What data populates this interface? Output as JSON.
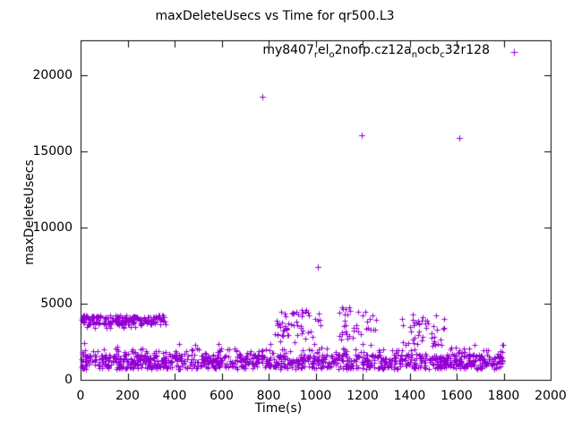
{
  "colors": {
    "background": "#ffffff",
    "foreground": "#000000",
    "series": "#9400D3"
  },
  "chart_data": {
    "type": "scatter",
    "title": "maxDeleteUsecs vs Time for qr500.L3",
    "xlabel": "Time(s)",
    "ylabel": "maxDeleteUsecs",
    "xlim": [
      0,
      2000
    ],
    "ylim": [
      0,
      22290
    ],
    "xticks": [
      0,
      200,
      400,
      600,
      800,
      1000,
      1200,
      1400,
      1600,
      1800,
      2000
    ],
    "yticks": [
      0,
      5000,
      10000,
      15000,
      20000
    ],
    "grid": false,
    "legend_position": "top-right-inside",
    "marker": "plus",
    "note": "dense scatter bands approximated by uniform random points within measured regions",
    "series": [
      {
        "name": "my8407_rel_o2nofp.cz12a_nocb_c32r128",
        "label_parts": [
          {
            "text": "my8407",
            "sub": false
          },
          {
            "text": "r",
            "sub": true
          },
          {
            "text": "el",
            "sub": false
          },
          {
            "text": "o",
            "sub": true
          },
          {
            "text": "2nofp.cz12a",
            "sub": false
          },
          {
            "text": "n",
            "sub": true
          },
          {
            "text": "ocb",
            "sub": false
          },
          {
            "text": "c",
            "sub": true
          },
          {
            "text": "32r128",
            "sub": false
          }
        ],
        "color": "#9400D3",
        "outlier_points": [
          [
            772,
            18600
          ],
          [
            1008,
            7400
          ],
          [
            1197,
            16050
          ],
          [
            1613,
            15900
          ]
        ],
        "dense_regions": [
          {
            "desc": "baseline band core 0-1800s",
            "t_range": [
              2,
              1798
            ],
            "y_range": [
              720,
              1660
            ],
            "count": 1000,
            "seed": 11
          },
          {
            "desc": "baseline band upper fuzz",
            "t_range": [
              3,
              1797
            ],
            "y_range": [
              1660,
              2080
            ],
            "count": 110,
            "seed": 22
          },
          {
            "desc": "baseline sparse tips",
            "t_range": [
              15,
              1790
            ],
            "y_range": [
              2080,
              2420
            ],
            "count": 10,
            "seed": 33
          },
          {
            "desc": "left plateau ~4000us 0-360s",
            "t_range": [
              0,
              362
            ],
            "y_range": [
              3620,
              4230
            ],
            "count": 210,
            "seed": 44
          },
          {
            "desc": "left plateau low fuzz",
            "t_range": [
              4,
              358
            ],
            "y_range": [
              3400,
              3620
            ],
            "count": 10,
            "seed": 55
          },
          {
            "desc": "cluster near 900s",
            "t_range": [
              828,
              1025
            ],
            "y_range": [
              2950,
              4620
            ],
            "count": 52,
            "seed": 66
          },
          {
            "desc": "cluster near 900s low tail",
            "t_range": [
              842,
              1005
            ],
            "y_range": [
              2430,
              2950
            ],
            "count": 5,
            "seed": 77
          },
          {
            "desc": "cluster near 1150s",
            "t_range": [
              1098,
              1258
            ],
            "y_range": [
              2300,
              4800
            ],
            "count": 40,
            "seed": 88
          },
          {
            "desc": "cluster near 1450s",
            "t_range": [
              1368,
              1548
            ],
            "y_range": [
              2220,
              4380
            ],
            "count": 46,
            "seed": 99
          },
          {
            "desc": "sparse points 1550-1800s",
            "t_range": [
              1552,
              1798
            ],
            "y_range": [
              1800,
              2420
            ],
            "count": 9,
            "seed": 111
          },
          {
            "desc": "left edge spikes",
            "t_range": [
              3,
              20
            ],
            "y_range": [
              2250,
              2600
            ],
            "count": 3,
            "seed": 122
          }
        ]
      }
    ]
  }
}
